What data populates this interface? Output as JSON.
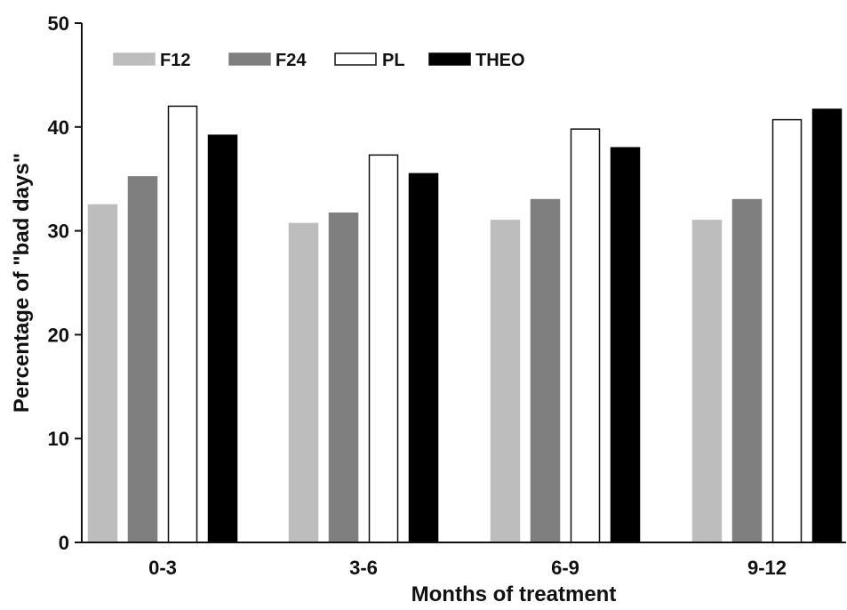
{
  "chart_data": {
    "type": "bar",
    "title": "",
    "xlabel": "Months of treatment",
    "ylabel": "Percentage of \"bad days\"",
    "ylim": [
      0,
      50
    ],
    "yticks": [
      0,
      10,
      20,
      30,
      40,
      50
    ],
    "categories": [
      "0-3",
      "3-6",
      "6-9",
      "9-12"
    ],
    "legend_position": "top-left",
    "grid": false,
    "series": [
      {
        "name": "F12",
        "values": [
          32.5,
          30.7,
          31.0,
          31.0
        ],
        "color": "#bdbdbd"
      },
      {
        "name": "F24",
        "values": [
          35.2,
          31.7,
          33.0,
          33.0
        ],
        "color": "#7f7f7f"
      },
      {
        "name": "PL",
        "values": [
          42.0,
          37.3,
          39.8,
          40.7
        ],
        "color": "#ffffff"
      },
      {
        "name": "THEO",
        "values": [
          39.2,
          35.5,
          38.0,
          41.7
        ],
        "color": "#000000"
      }
    ]
  }
}
